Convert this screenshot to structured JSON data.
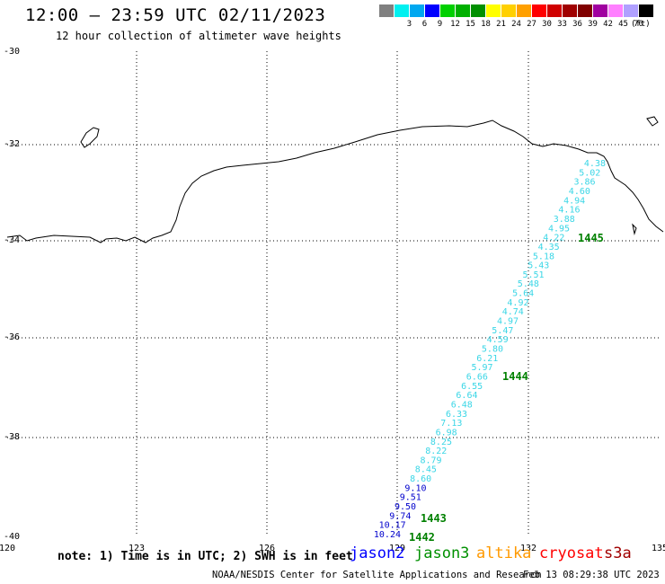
{
  "header": {
    "title": "12:00 – 23:59 UTC 02/11/2023",
    "subtitle": "12 hour collection of altimeter wave heights"
  },
  "color_scale": {
    "unit": "(ft)",
    "swatches": [
      {
        "color": "#808080",
        "label": ""
      },
      {
        "color": "#00f0f0",
        "label": "3"
      },
      {
        "color": "#00a8f0",
        "label": "6"
      },
      {
        "color": "#0000ff",
        "label": "9"
      },
      {
        "color": "#00d000",
        "label": "12"
      },
      {
        "color": "#00b000",
        "label": "15"
      },
      {
        "color": "#009000",
        "label": "18"
      },
      {
        "color": "#ffff00",
        "label": "21"
      },
      {
        "color": "#ffd000",
        "label": "24"
      },
      {
        "color": "#ffa000",
        "label": "27"
      },
      {
        "color": "#ff0000",
        "label": "30"
      },
      {
        "color": "#d00000",
        "label": "33"
      },
      {
        "color": "#a00000",
        "label": "36"
      },
      {
        "color": "#800000",
        "label": "39"
      },
      {
        "color": "#a000a0",
        "label": "42"
      },
      {
        "color": "#ff80ff",
        "label": "45"
      },
      {
        "color": "#b0a0ff",
        "label": "70"
      },
      {
        "color": "#000000",
        "label": ""
      }
    ]
  },
  "axes": {
    "lon_labels": [
      "120",
      "123",
      "126",
      "129",
      "132",
      "135"
    ],
    "lat_labels": [
      "-30",
      "-32",
      "-34",
      "-36",
      "-38",
      "-40"
    ]
  },
  "track": {
    "color": "#3ad6e6",
    "color_dark": "#0000cc",
    "values": [
      "4.38",
      "5.02",
      "3.86",
      "4.60",
      "4.94",
      "4.16",
      "3.88",
      "4.95",
      "4.22",
      "4.35",
      "5.18",
      "5.43",
      "5.51",
      "5.48",
      "5.64",
      "4.92",
      "4.74",
      "4.97",
      "5.47",
      "4.59",
      "5.80",
      "6.21",
      "5.97",
      "6.66",
      "6.55",
      "6.64",
      "6.48",
      "6.33",
      "7.13",
      "6.98",
      "8.25",
      "8.22",
      "8.79",
      "8.45",
      "8.60",
      "9.10",
      "9.51",
      "9.50",
      "9.74",
      "10.17",
      "10.24"
    ],
    "times": [
      "1445",
      "1444",
      "1443",
      "1442"
    ],
    "time_color": "#008000"
  },
  "legend": {
    "note": "note: 1) Time is in UTC; 2) SWH is in feet",
    "satellites": [
      {
        "name": "jason2",
        "color": "#0000ff"
      },
      {
        "name": "jason3",
        "color": "#009000"
      },
      {
        "name": "altika",
        "color": "#ff9900"
      },
      {
        "name": "cryosat",
        "color": "#ff0000"
      },
      {
        "name": "s3a",
        "color": "#a00000"
      }
    ]
  },
  "footer": {
    "credit": "NOAA/NESDIS Center for Satellite Applications and Research",
    "timestamp": "Feb 13 08:29:38 UTC 2023"
  }
}
